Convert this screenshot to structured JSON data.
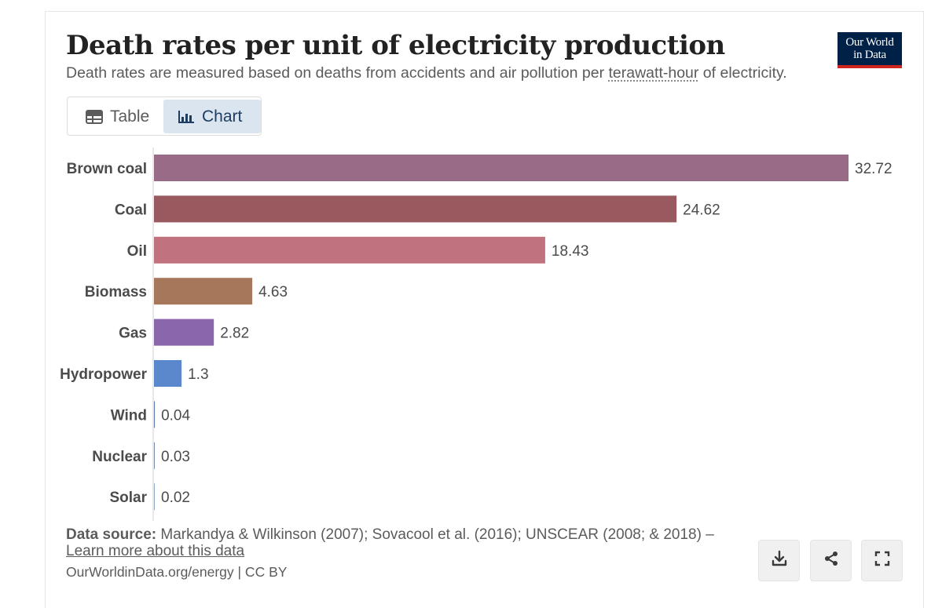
{
  "header": {
    "title": "Death rates per unit of electricity production",
    "subtitle_before": "Death rates are measured based on deaths from accidents and air pollution per ",
    "subtitle_term": "terawatt-hour",
    "subtitle_after": " of electricity.",
    "logo_line1": "Our World",
    "logo_line2": "in Data"
  },
  "tabs": {
    "table_label": "Table",
    "chart_label": "Chart",
    "active": "Chart"
  },
  "footer": {
    "source_label": "Data source:",
    "source_text": " Markandya & Wilkinson (2007); Sovacool et al. (2016); UNSCEAR (2008; & 2018) –",
    "learn_more": "Learn more about this data",
    "credit": "OurWorldinData.org/energy | CC BY"
  },
  "actions": [
    "download-icon",
    "share-icon",
    "fullscreen-icon"
  ],
  "chart_data": {
    "type": "bar",
    "orientation": "horizontal",
    "title": "Death rates per unit of electricity production",
    "xlabel": "",
    "ylabel": "",
    "xlim": [
      0,
      32.72
    ],
    "categories": [
      "Brown coal",
      "Coal",
      "Oil",
      "Biomass",
      "Gas",
      "Hydropower",
      "Wind",
      "Nuclear",
      "Solar"
    ],
    "values": [
      32.72,
      24.62,
      18.43,
      4.63,
      2.82,
      1.3,
      0.04,
      0.03,
      0.02
    ],
    "value_labels": [
      "32.72",
      "24.62",
      "18.43",
      "4.63",
      "2.82",
      "1.3",
      "0.04",
      "0.03",
      "0.02"
    ],
    "colors": [
      "#9a6b86",
      "#985a5f",
      "#c1727f",
      "#a6775a",
      "#8a66ad",
      "#5b88cc",
      "#5b7fa8",
      "#7a8fb0",
      "#8fa9c9"
    ]
  }
}
